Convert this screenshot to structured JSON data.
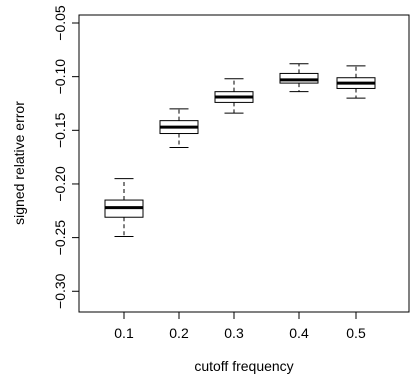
{
  "chart_data": {
    "type": "boxplot",
    "title": "",
    "xlabel": "cutoff frequency",
    "ylabel": "signed relative error",
    "ylim": [
      -0.31,
      -0.05
    ],
    "categories": [
      "0.1",
      "0.2",
      "0.3",
      "0.4",
      "0.5"
    ],
    "y_ticks": [
      -0.3,
      -0.25,
      -0.2,
      -0.15,
      -0.1,
      -0.05
    ],
    "y_tick_labels": [
      "−0.30",
      "−0.25",
      "−0.20",
      "−0.15",
      "−0.10",
      "−0.05"
    ],
    "grid": false,
    "boxes": [
      {
        "category": "0.1",
        "whisker_low": -0.249,
        "q1": -0.231,
        "median": -0.222,
        "q3": -0.215,
        "whisker_high": -0.195
      },
      {
        "category": "0.2",
        "whisker_low": -0.166,
        "q1": -0.153,
        "median": -0.147,
        "q3": -0.141,
        "whisker_high": -0.13
      },
      {
        "category": "0.3",
        "whisker_low": -0.134,
        "q1": -0.124,
        "median": -0.119,
        "q3": -0.114,
        "whisker_high": -0.102
      },
      {
        "category": "0.4",
        "whisker_low": -0.114,
        "q1": -0.106,
        "median": -0.103,
        "q3": -0.097,
        "whisker_high": -0.088
      },
      {
        "category": "0.5",
        "whisker_low": -0.12,
        "q1": -0.111,
        "median": -0.106,
        "q3": -0.101,
        "whisker_high": -0.09
      }
    ]
  }
}
